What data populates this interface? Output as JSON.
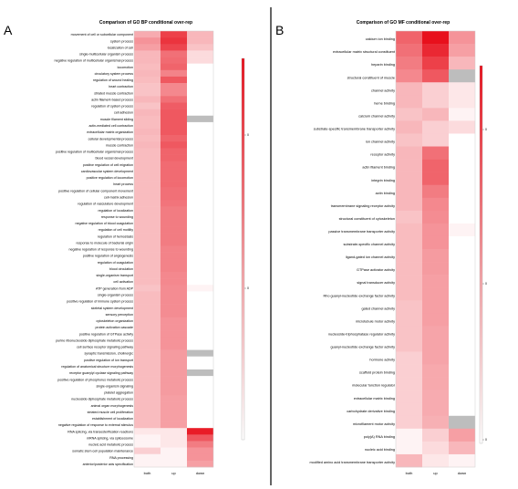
{
  "chart_data": [
    {
      "type": "heatmap",
      "panel_label": "A",
      "title": "Comparison of GO BP conditional over-rep",
      "columns": [
        "both",
        "up",
        "down"
      ],
      "rows": [
        "movement of cell or subcellular component",
        "system process",
        "localization of cell",
        "single-multicellular organism process",
        "negative regulation of multicellular organismal process",
        "locomotion",
        "circulatory system process",
        "regulation of wound healing",
        "heart contraction",
        "striated muscle contraction",
        "actin filament-based process",
        "regulation of system process",
        "cell adhesion",
        "muscle filament sliding",
        "actin-mediated cell contraction",
        "extracellular matrix organization",
        "cellular developmental process",
        "muscle contraction",
        "positive regulation of multicellular organismal process",
        "blood vessel development",
        "positive regulation of cell migration",
        "cardiovascular system development",
        "positive regulation of locomotion",
        "heart process",
        "positive regulation of cellular component movement",
        "cell-matrix adhesion",
        "regulation of vasculature development",
        "regulation of localization",
        "response to wounding",
        "negative regulation of blood coagulation",
        "regulation of cell motility",
        "regulation of hemostasis",
        "response to molecule of bacterial origin",
        "negative regulation of response to wounding",
        "positive regulation of angiogenesis",
        "regulation of coagulation",
        "blood circulation",
        "single-organism transport",
        "cell activation",
        "ATP generation from ADP",
        "single-organism process",
        "positive regulation of immune system process",
        "skeletal system development",
        "sensory perception",
        "cytoskeleton organization",
        "protein activation cascade",
        "positive regulation of GTPase activity",
        "purine ribonucleoside diphosphate metabolic process",
        "cell surface receptor signaling pathway",
        "synaptic transmission, cholinergic",
        "positive regulation of ion transport",
        "regulation of anatomical structure morphogenesis",
        "receptor guanylyl cyclase signaling pathway",
        "positive regulation of phosphorus metabolic process",
        "single-organism signaling",
        "platelet aggregation",
        "nucleoside diphosphate metabolic process",
        "animal organ morphogenesis",
        "striated muscle cell proliferation",
        "establishment of localization",
        "negative regulation of response to external stimulus",
        "RNA splicing, via transesterification reactions",
        "mRNA splicing, via spliceosome",
        "nucleic acid metabolic process",
        "somatic stem cell population maintenance",
        "RNA processing",
        "anterior/posterior axis specification"
      ],
      "values": [
        [
          0.35,
          0.8,
          0.3
        ],
        [
          0.45,
          0.85,
          0.3
        ],
        [
          0.4,
          0.78,
          0.25
        ],
        [
          0.3,
          0.6,
          0.15
        ],
        [
          0.3,
          0.62,
          0.15
        ],
        [
          0.28,
          0.65,
          0.0
        ],
        [
          0.3,
          0.52,
          0.0
        ],
        [
          0.28,
          0.7,
          0.0
        ],
        [
          0.25,
          0.5,
          0.0
        ],
        [
          0.25,
          0.5,
          0.0
        ],
        [
          0.3,
          0.6,
          0.0
        ],
        [
          0.25,
          0.68,
          0.0
        ],
        [
          0.3,
          0.7,
          0.0
        ],
        [
          0.28,
          0.7,
          null
        ],
        [
          0.28,
          0.7,
          0.0
        ],
        [
          0.3,
          0.7,
          0.0
        ],
        [
          0.28,
          0.65,
          0.0
        ],
        [
          0.3,
          0.7,
          0.0
        ],
        [
          0.28,
          0.65,
          0.0
        ],
        [
          0.28,
          0.65,
          0.0
        ],
        [
          0.28,
          0.62,
          0.0
        ],
        [
          0.28,
          0.62,
          0.0
        ],
        [
          0.28,
          0.62,
          0.0
        ],
        [
          0.28,
          0.62,
          0.0
        ],
        [
          0.28,
          0.6,
          0.0
        ],
        [
          0.28,
          0.6,
          0.0
        ],
        [
          0.28,
          0.58,
          0.0
        ],
        [
          0.28,
          0.55,
          0.0
        ],
        [
          0.28,
          0.55,
          0.0
        ],
        [
          0.28,
          0.55,
          0.0
        ],
        [
          0.28,
          0.55,
          0.0
        ],
        [
          0.28,
          0.55,
          0.0
        ],
        [
          0.28,
          0.55,
          0.0
        ],
        [
          0.28,
          0.52,
          0.0
        ],
        [
          0.28,
          0.52,
          0.0
        ],
        [
          0.28,
          0.52,
          0.0
        ],
        [
          0.28,
          0.52,
          0.0
        ],
        [
          0.28,
          0.5,
          0.0
        ],
        [
          0.28,
          0.5,
          0.0
        ],
        [
          0.25,
          0.48,
          0.05
        ],
        [
          0.28,
          0.48,
          0.0
        ],
        [
          0.28,
          0.48,
          0.0
        ],
        [
          0.28,
          0.48,
          0.0
        ],
        [
          0.28,
          0.48,
          0.0
        ],
        [
          0.28,
          0.45,
          0.0
        ],
        [
          0.28,
          0.45,
          0.0
        ],
        [
          0.28,
          0.45,
          0.0
        ],
        [
          0.28,
          0.45,
          0.0
        ],
        [
          0.28,
          0.45,
          0.0
        ],
        [
          0.28,
          0.42,
          null
        ],
        [
          0.28,
          0.42,
          0.0
        ],
        [
          0.28,
          0.42,
          0.0
        ],
        [
          0.28,
          0.42,
          null
        ],
        [
          0.28,
          0.42,
          0.0
        ],
        [
          0.28,
          0.42,
          0.0
        ],
        [
          0.28,
          0.42,
          0.0
        ],
        [
          0.28,
          0.4,
          0.0
        ],
        [
          0.28,
          0.4,
          0.0
        ],
        [
          0.28,
          0.4,
          0.0
        ],
        [
          0.28,
          0.4,
          0.0
        ],
        [
          0.28,
          0.4,
          0.0
        ],
        [
          0.1,
          0.1,
          0.95
        ],
        [
          0.05,
          0.1,
          0.7
        ],
        [
          0.05,
          0.1,
          0.55
        ],
        [
          0.2,
          0.05,
          0.45
        ],
        [
          0.05,
          0.05,
          0.45
        ],
        [
          0.05,
          0.05,
          0.4
        ]
      ]
    },
    {
      "type": "heatmap",
      "panel_label": "B",
      "title": "Comparison of GO MF conditional over-rep",
      "columns": [
        "both",
        "up",
        "down"
      ],
      "rows": [
        "calcium ion binding",
        "extracellular matrix structural constituent",
        "heparin binding",
        "structural constituent of muscle",
        "channel activity",
        "heme binding",
        "calcium channel activity",
        "substrate-specific transmembrane transporter activity",
        "ion channel activity",
        "receptor activity",
        "actin filament binding",
        "integrin binding",
        "actin binding",
        "transmembrane signaling receptor activity",
        "structural constituent of cytoskeleton",
        "passive transmembrane transporter activity",
        "substrate-specific channel activity",
        "ligand-gated ion channel activity",
        "GTPase activator activity",
        "signal transducer activity",
        "Rho guanyl-nucleotide exchange factor activity",
        "gated channel activity",
        "microtubule motor activity",
        "nucleoside-triphosphatase regulator activity",
        "guanyl-nucleotide exchange factor activity",
        "hormone activity",
        "scaffold protein binding",
        "molecular function regulator",
        "extracellular matrix binding",
        "carbohydrate derivative binding",
        "microfilament motor activity",
        "poly(A) RNA binding",
        "nucleic acid binding",
        "modified amino acid transmembrane transporter activity"
      ],
      "values": [
        [
          0.65,
          1.0,
          0.45
        ],
        [
          0.6,
          0.9,
          0.4
        ],
        [
          0.55,
          0.8,
          0.3
        ],
        [
          0.5,
          0.7,
          null
        ],
        [
          0.3,
          0.2,
          0.1
        ],
        [
          0.3,
          0.2,
          0.1
        ],
        [
          0.25,
          0.3,
          0.05
        ],
        [
          0.3,
          0.2,
          0.15
        ],
        [
          0.25,
          0.2,
          0.0
        ],
        [
          0.3,
          0.6,
          0.0
        ],
        [
          0.3,
          0.65,
          0.0
        ],
        [
          0.3,
          0.65,
          0.0
        ],
        [
          0.3,
          0.55,
          0.0
        ],
        [
          0.3,
          0.5,
          0.0
        ],
        [
          0.25,
          0.48,
          0.0
        ],
        [
          0.28,
          0.45,
          0.05
        ],
        [
          0.28,
          0.45,
          0.0
        ],
        [
          0.28,
          0.42,
          0.0
        ],
        [
          0.28,
          0.42,
          0.0
        ],
        [
          0.28,
          0.4,
          0.0
        ],
        [
          0.28,
          0.4,
          0.0
        ],
        [
          0.25,
          0.4,
          0.0
        ],
        [
          0.25,
          0.4,
          0.0
        ],
        [
          0.25,
          0.38,
          0.0
        ],
        [
          0.25,
          0.38,
          0.0
        ],
        [
          0.2,
          0.38,
          0.0
        ],
        [
          0.2,
          0.36,
          0.0
        ],
        [
          0.2,
          0.36,
          0.0
        ],
        [
          0.2,
          0.35,
          0.0
        ],
        [
          0.2,
          0.35,
          0.0
        ],
        [
          0.2,
          0.33,
          null
        ],
        [
          0.05,
          0.2,
          0.4
        ],
        [
          0.05,
          0.15,
          0.3
        ],
        [
          0.3,
          0.1,
          0.05
        ]
      ]
    }
  ],
  "legend_ticks_a": [
    "0",
    "0"
  ],
  "legend_ticks_b": [
    "0",
    "0",
    "0"
  ],
  "colors": {
    "high": "#e8101c",
    "low": "#ffffff",
    "missing": "#bdbdbd",
    "divider": "#222222"
  }
}
